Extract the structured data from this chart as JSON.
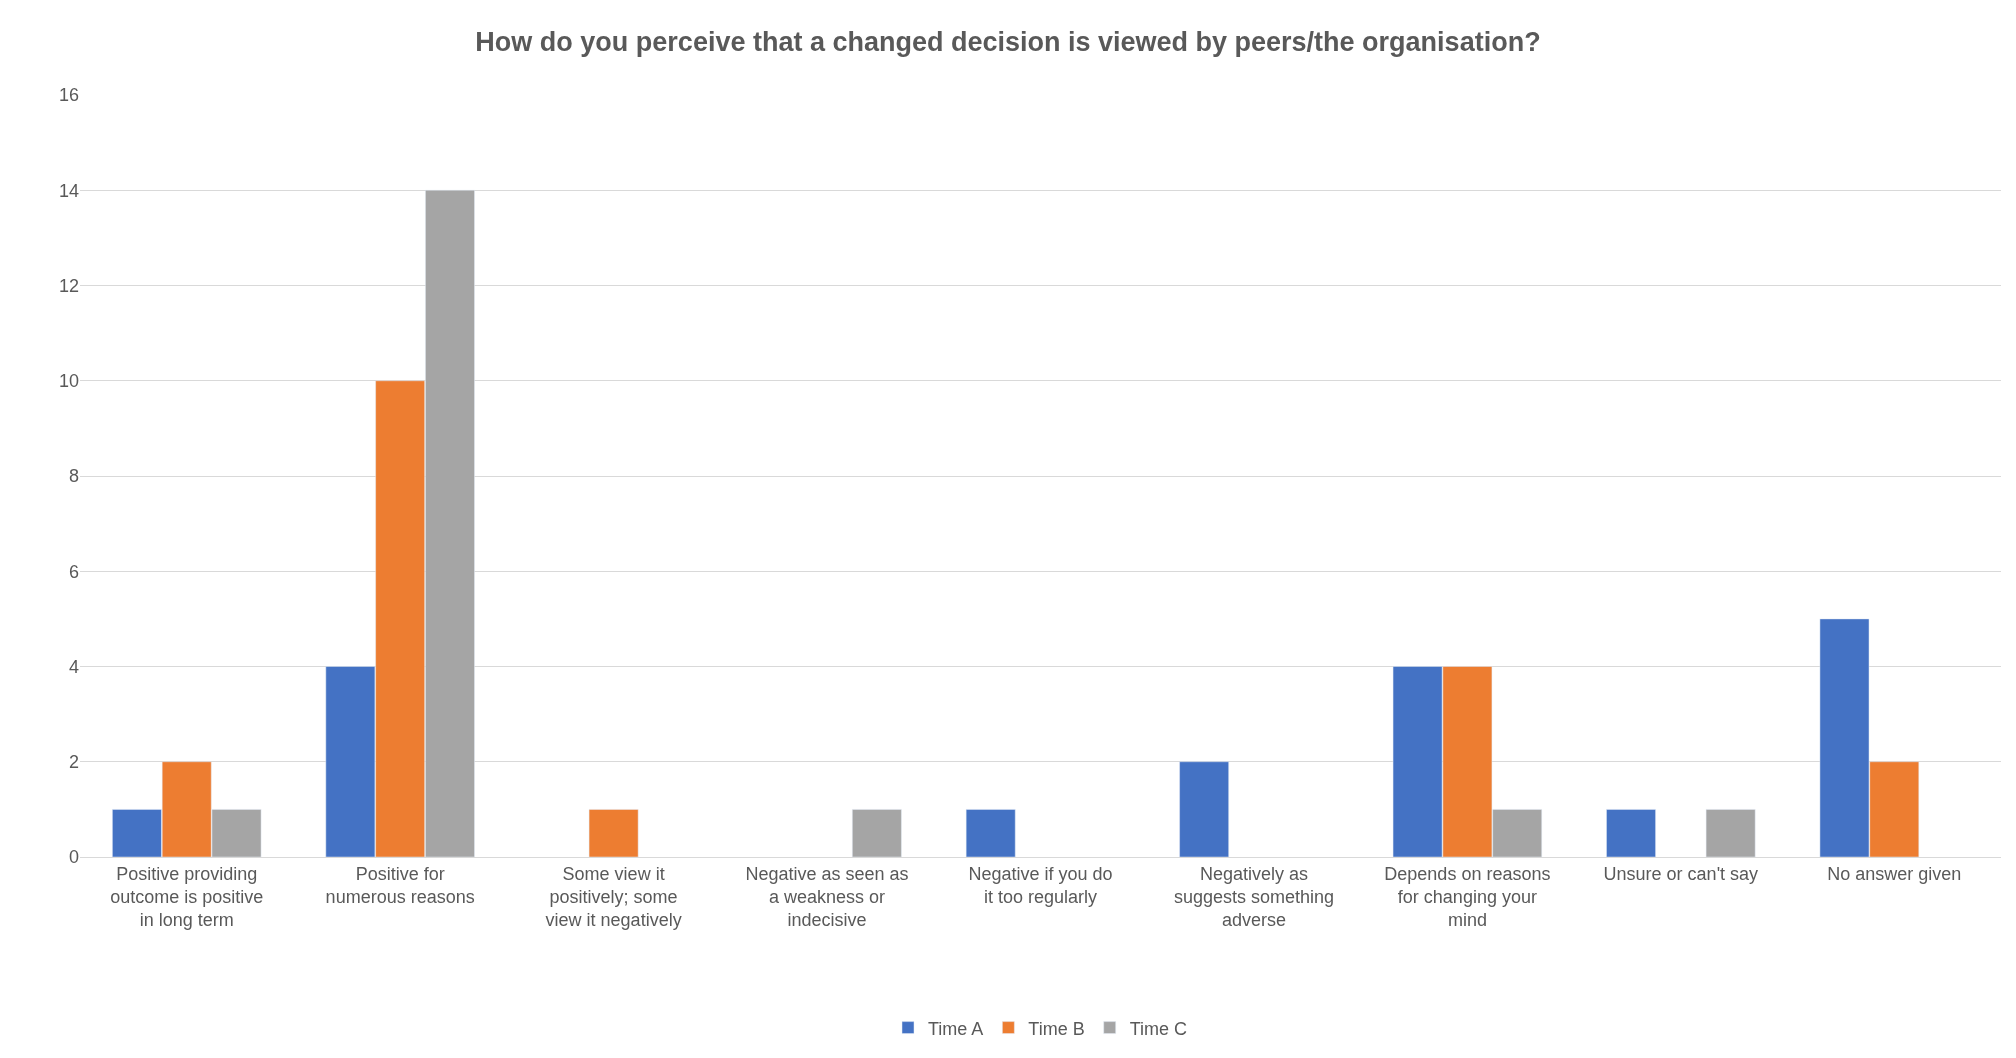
{
  "chart_data": {
    "type": "bar",
    "title": "How do you perceive that a changed decision is viewed by peers/the organisation?",
    "categories": [
      "Positive providing outcome is positive in long term",
      "Positive for numerous reasons",
      "Some view it positively; some view it negatively",
      "Negative as seen as a weakness or indecisive",
      "Negative if you do it too regularly",
      "Negatively as suggests something adverse",
      "Depends on reasons for changing your mind",
      "Unsure or can't say",
      "No answer given"
    ],
    "series": [
      {
        "name": "Time A",
        "color": "#4472c4",
        "values": [
          1,
          4,
          null,
          null,
          1,
          2,
          4,
          1,
          5
        ]
      },
      {
        "name": "Time B",
        "color": "#ed7d31",
        "values": [
          2,
          10,
          1,
          null,
          null,
          null,
          4,
          null,
          2
        ]
      },
      {
        "name": "Time C",
        "color": "#a5a5a5",
        "values": [
          1,
          14,
          null,
          1,
          null,
          null,
          1,
          1,
          null
        ]
      }
    ],
    "ylim": [
      0,
      16
    ],
    "yticks": [
      0,
      2,
      4,
      6,
      8,
      10,
      12,
      14,
      16
    ],
    "grid": "y",
    "legend": "bottom"
  }
}
